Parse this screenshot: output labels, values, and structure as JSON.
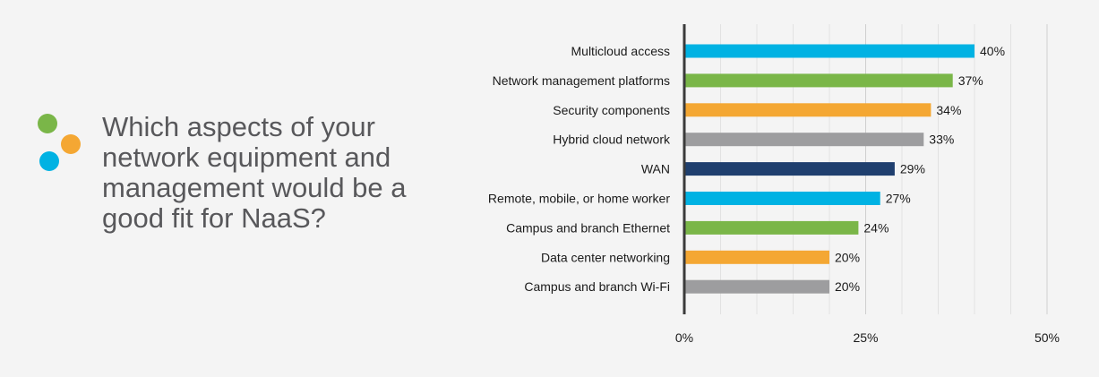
{
  "question": {
    "text": "Which aspects of your network equipment and management would be a good fit for NaaS?"
  },
  "decor": {
    "dot_colors": [
      "#7ab648",
      "#f4a733",
      "#00b2e3"
    ]
  },
  "chart_data": {
    "type": "bar",
    "orientation": "horizontal",
    "categories": [
      "Multicloud access",
      "Network management platforms",
      "Security components",
      "Hybrid cloud network",
      "WAN",
      "Remote, mobile, or home worker",
      "Campus and branch Ethernet",
      "Data center networking",
      "Campus and branch Wi-Fi"
    ],
    "values": [
      40,
      37,
      34,
      33,
      29,
      27,
      24,
      20,
      20
    ],
    "value_labels": [
      "40%",
      "37%",
      "34%",
      "33%",
      "29%",
      "27%",
      "24%",
      "20%",
      "20%"
    ],
    "colors": [
      "#00b2e3",
      "#7ab648",
      "#f4a733",
      "#9d9d9f",
      "#1f3f6e",
      "#00b2e3",
      "#7ab648",
      "#f4a733",
      "#9d9d9f"
    ],
    "xlim": [
      0,
      50
    ],
    "x_ticks": [
      0,
      25,
      50
    ],
    "x_tick_labels": [
      "0%",
      "25%",
      "50%"
    ],
    "grid": true,
    "title": "",
    "xlabel": "",
    "ylabel": ""
  }
}
